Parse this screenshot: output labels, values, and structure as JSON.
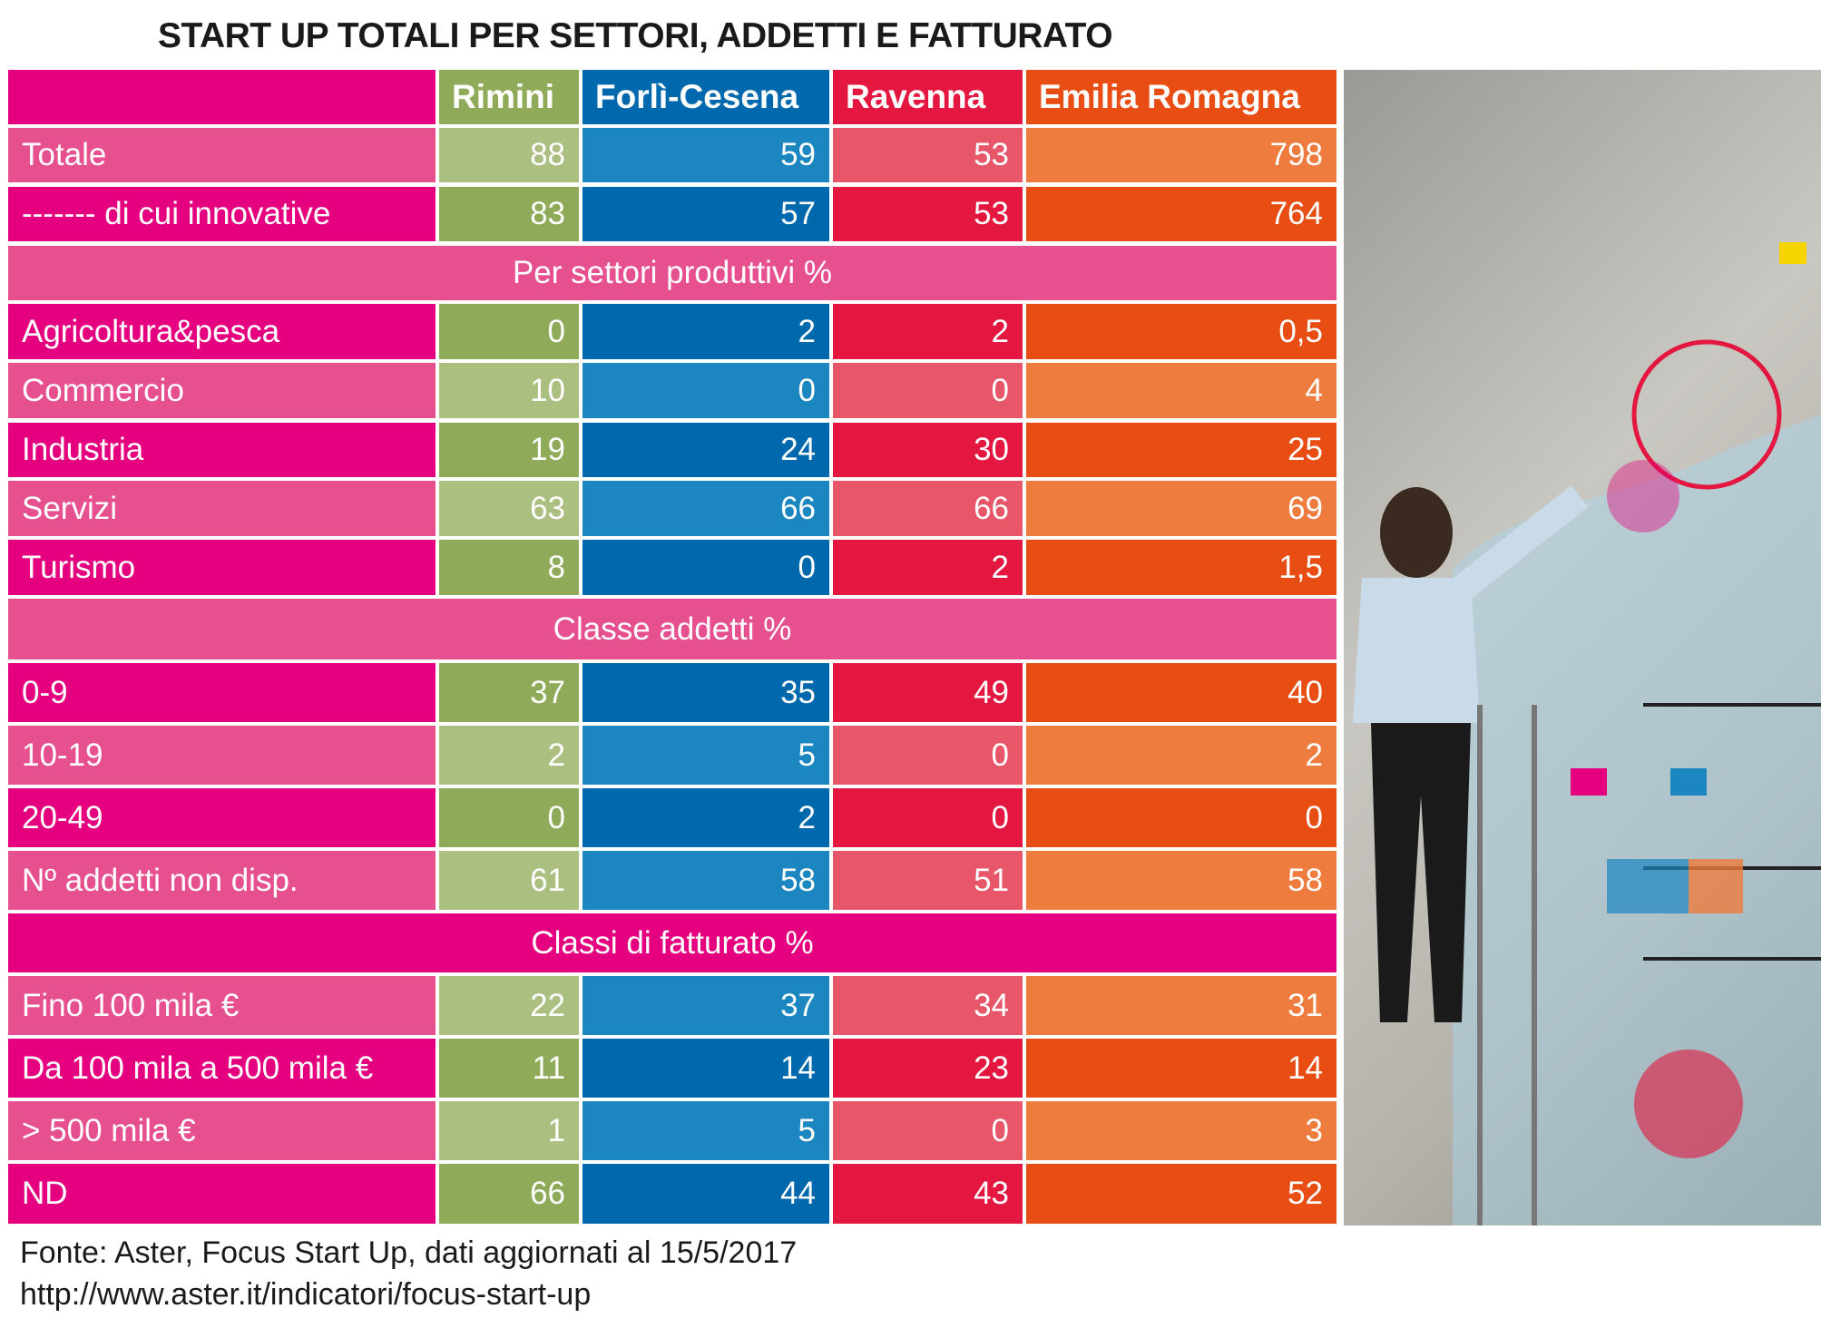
{
  "title": "START UP TOTALI PER SETTORI, ADDETTI E FATTURATO",
  "columns": [
    "Rimini",
    "Forlì-Cesena",
    "Ravenna",
    "Emilia Romagna"
  ],
  "colors": {
    "label": {
      "dark": "#e4007e",
      "light": "#e6508f"
    },
    "rimini": {
      "dark": "#8fab5a",
      "light": "#abbf80"
    },
    "forli_cesena": {
      "dark": "#0068ac",
      "light": "#1b86c0"
    },
    "ravenna": {
      "dark": "#e3173f",
      "light": "#e8566a"
    },
    "emilia_romagna": {
      "dark": "#e84e13",
      "light": "#ee7c3e"
    }
  },
  "rows": [
    {
      "type": "data",
      "shade": "light",
      "label": "Totale",
      "values": [
        "88",
        "59",
        "53",
        "798"
      ]
    },
    {
      "type": "data",
      "shade": "dark",
      "label": "------- di cui innovative",
      "values": [
        "83",
        "57",
        "53",
        "764"
      ]
    },
    {
      "type": "section",
      "shade": "light",
      "label": "Per settori produttivi %"
    },
    {
      "type": "data",
      "shade": "dark",
      "label": "Agricoltura&pesca",
      "values": [
        "0",
        "2",
        "2",
        "0,5"
      ]
    },
    {
      "type": "data",
      "shade": "light",
      "label": "Commercio",
      "values": [
        "10",
        "0",
        "0",
        "4"
      ]
    },
    {
      "type": "data",
      "shade": "dark",
      "label": "Industria",
      "values": [
        "19",
        "24",
        "30",
        "25"
      ]
    },
    {
      "type": "data",
      "shade": "light",
      "label": "Servizi",
      "values": [
        "63",
        "66",
        "66",
        "69"
      ]
    },
    {
      "type": "data",
      "shade": "dark",
      "label": "Turismo",
      "values": [
        "8",
        "0",
        "2",
        "1,5"
      ]
    },
    {
      "type": "section",
      "shade": "light",
      "label": "Classe addetti %"
    },
    {
      "type": "data",
      "shade": "dark",
      "label": "0-9",
      "values": [
        "37",
        "35",
        "49",
        "40"
      ]
    },
    {
      "type": "data",
      "shade": "light",
      "label": "10-19",
      "values": [
        "2",
        "5",
        "0",
        "2"
      ]
    },
    {
      "type": "data",
      "shade": "dark",
      "label": "20-49",
      "values": [
        "0",
        "2",
        "0",
        "0"
      ]
    },
    {
      "type": "data",
      "shade": "light",
      "label": "Nº addetti non disp.",
      "values": [
        "61",
        "58",
        "51",
        "58"
      ]
    },
    {
      "type": "section",
      "shade": "dark",
      "label": "Classi di fatturato %"
    },
    {
      "type": "data",
      "shade": "light",
      "label": "Fino 100 mila €",
      "values": [
        "22",
        "37",
        "34",
        "31"
      ]
    },
    {
      "type": "data",
      "shade": "dark",
      "label": "Da 100 mila a 500 mila €",
      "values": [
        "11",
        "14",
        "23",
        "14"
      ]
    },
    {
      "type": "data",
      "shade": "light",
      "label": "> 500 mila €",
      "values": [
        "1",
        "5",
        "0",
        "3"
      ]
    },
    {
      "type": "data",
      "shade": "dark",
      "label": "ND",
      "values": [
        "66",
        "44",
        "43",
        "52"
      ]
    }
  ],
  "source": {
    "line1": "Fonte: Aster, Focus Start Up, dati aggiornati al 15/5/2017",
    "line2": "http://www.aster.it/indicatori/focus-start-up"
  }
}
